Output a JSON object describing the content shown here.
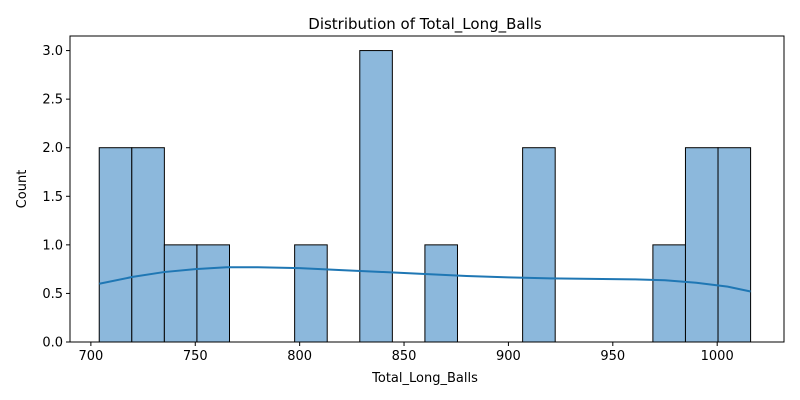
{
  "chart_data": {
    "type": "bar",
    "subtype": "histogram-with-kde",
    "title": "Distribution of Total_Long_Balls",
    "xlabel": "Total_Long_Balls",
    "ylabel": "Count",
    "xlim": [
      690,
      1032
    ],
    "ylim": [
      0,
      3.15
    ],
    "x_ticks": [
      700,
      750,
      800,
      850,
      900,
      950,
      1000
    ],
    "y_ticks": [
      0.0,
      0.5,
      1.0,
      1.5,
      2.0,
      2.5,
      3.0
    ],
    "x_tick_labels": [
      "700",
      "750",
      "800",
      "850",
      "900",
      "950",
      "1000"
    ],
    "y_tick_labels": [
      "0.0",
      "0.5",
      "1.0",
      "1.5",
      "2.0",
      "2.5",
      "3.0"
    ],
    "bins": [
      {
        "x0": 704.0,
        "x1": 719.6,
        "count": 2
      },
      {
        "x0": 719.6,
        "x1": 735.2,
        "count": 2
      },
      {
        "x0": 735.2,
        "x1": 750.8,
        "count": 1
      },
      {
        "x0": 750.8,
        "x1": 766.4,
        "count": 1
      },
      {
        "x0": 797.6,
        "x1": 813.2,
        "count": 1
      },
      {
        "x0": 828.8,
        "x1": 844.4,
        "count": 3
      },
      {
        "x0": 860.0,
        "x1": 875.6,
        "count": 1
      },
      {
        "x0": 906.8,
        "x1": 922.4,
        "count": 2
      },
      {
        "x0": 969.2,
        "x1": 984.8,
        "count": 1
      },
      {
        "x0": 984.8,
        "x1": 1000.4,
        "count": 2
      },
      {
        "x0": 1000.4,
        "x1": 1016.0,
        "count": 2
      }
    ],
    "kde": {
      "x": [
        704,
        720,
        735,
        750,
        765,
        780,
        800,
        820,
        840,
        860,
        880,
        900,
        920,
        940,
        960,
        975,
        990,
        1005,
        1016
      ],
      "y": [
        0.6,
        0.67,
        0.72,
        0.75,
        0.77,
        0.77,
        0.76,
        0.74,
        0.72,
        0.7,
        0.68,
        0.665,
        0.655,
        0.65,
        0.645,
        0.635,
        0.61,
        0.57,
        0.52
      ]
    },
    "bar_fill": "#8cb8dc",
    "bar_edge": "#000000",
    "kde_color": "#1f77b4",
    "grid": false,
    "legend": "none"
  }
}
